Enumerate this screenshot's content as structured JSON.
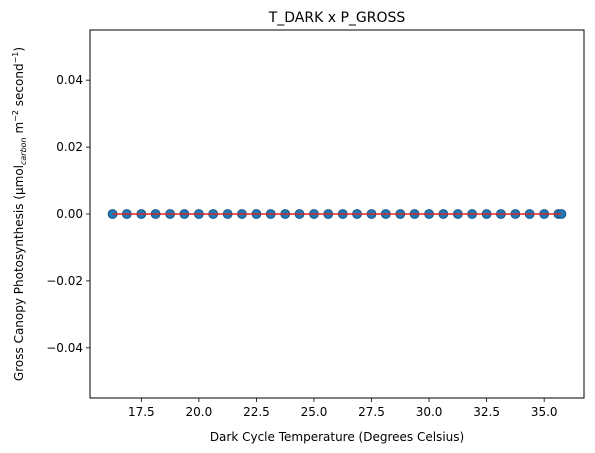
{
  "chart_data": {
    "type": "scatter",
    "title": "T_DARK x P_GROSS",
    "xlabel": "Dark Cycle Temperature (Degrees Celsius)",
    "ylabel": "Gross Canopy Photosynthesis (µmol",
    "ylabel_sub": "carbon",
    "ylabel_rest_1": " m",
    "ylabel_sup_1": "−2",
    "ylabel_rest_2": " second",
    "ylabel_sup_2": "−1",
    "ylabel_close": ")",
    "xlim": [
      15.27,
      36.73
    ],
    "ylim": [
      -0.055,
      0.055
    ],
    "xticks": [
      17.5,
      20.0,
      22.5,
      25.0,
      27.5,
      30.0,
      32.5,
      35.0
    ],
    "xtick_labels": [
      "17.5",
      "20.0",
      "22.5",
      "25.0",
      "27.5",
      "30.0",
      "32.5",
      "35.0"
    ],
    "yticks": [
      -0.04,
      -0.02,
      0.0,
      0.02,
      0.04
    ],
    "ytick_labels": [
      "−0.04",
      "−0.02",
      "0.00",
      "0.02",
      "0.04"
    ],
    "grid": false,
    "point_color": "#1f77b4",
    "line_color": "#d62728",
    "points": {
      "x": [
        16.25,
        16.87,
        17.5,
        18.12,
        18.75,
        19.37,
        20.0,
        20.62,
        21.25,
        21.87,
        22.5,
        23.12,
        23.75,
        24.37,
        25.0,
        25.62,
        26.25,
        26.87,
        27.5,
        28.12,
        28.75,
        29.37,
        30.0,
        30.62,
        31.25,
        31.87,
        32.5,
        33.12,
        33.75,
        34.37,
        35.0,
        35.62,
        35.75
      ],
      "y": [
        0,
        0,
        0,
        0,
        0,
        0,
        0,
        0,
        0,
        0,
        0,
        0,
        0,
        0,
        0,
        0,
        0,
        0,
        0,
        0,
        0,
        0,
        0,
        0,
        0,
        0,
        0,
        0,
        0,
        0,
        0,
        0,
        0
      ]
    },
    "fit_line": {
      "x": [
        16.25,
        35.75
      ],
      "y": [
        0,
        0
      ]
    }
  }
}
